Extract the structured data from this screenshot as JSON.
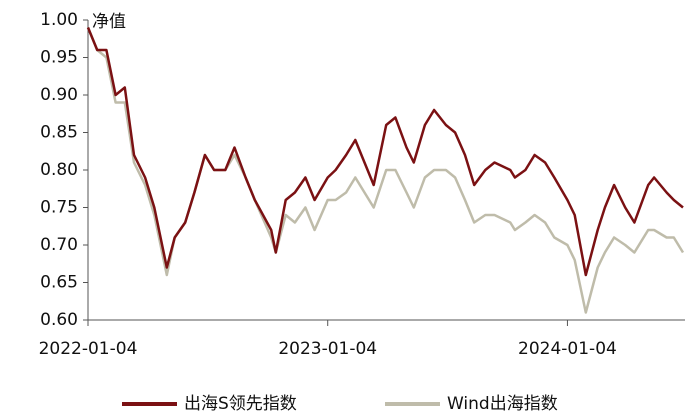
{
  "chart_data": {
    "type": "line",
    "y_label": "净值",
    "x": [
      "2022-01-04",
      "2022-01-18",
      "2022-02-01",
      "2022-02-15",
      "2022-03-01",
      "2022-03-15",
      "2022-04-01",
      "2022-04-15",
      "2022-05-04",
      "2022-05-16",
      "2022-06-01",
      "2022-06-15",
      "2022-07-01",
      "2022-07-15",
      "2022-08-01",
      "2022-08-15",
      "2022-09-01",
      "2022-09-15",
      "2022-10-10",
      "2022-10-17",
      "2022-11-01",
      "2022-11-15",
      "2022-12-01",
      "2022-12-15",
      "2023-01-04",
      "2023-01-16",
      "2023-02-01",
      "2023-02-15",
      "2023-03-01",
      "2023-03-15",
      "2023-04-03",
      "2023-04-17",
      "2023-05-04",
      "2023-05-15",
      "2023-06-01",
      "2023-06-15",
      "2023-07-03",
      "2023-07-17",
      "2023-08-01",
      "2023-08-15",
      "2023-09-01",
      "2023-09-15",
      "2023-10-09",
      "2023-10-16",
      "2023-11-01",
      "2023-11-15",
      "2023-12-01",
      "2023-12-15",
      "2024-01-04",
      "2024-01-15",
      "2024-02-01",
      "2024-02-19",
      "2024-03-01",
      "2024-03-15",
      "2024-04-01",
      "2024-04-15",
      "2024-05-06",
      "2024-05-15",
      "2024-06-03",
      "2024-06-14",
      "2024-06-28"
    ],
    "series": [
      {
        "name": "出海S领先指数",
        "color": "#7b1113",
        "values": [
          0.99,
          0.96,
          0.96,
          0.9,
          0.91,
          0.82,
          0.79,
          0.75,
          0.67,
          0.71,
          0.73,
          0.77,
          0.82,
          0.8,
          0.8,
          0.83,
          0.79,
          0.76,
          0.72,
          0.69,
          0.76,
          0.77,
          0.79,
          0.76,
          0.79,
          0.8,
          0.82,
          0.84,
          0.81,
          0.78,
          0.86,
          0.87,
          0.83,
          0.81,
          0.86,
          0.88,
          0.86,
          0.85,
          0.82,
          0.78,
          0.8,
          0.81,
          0.8,
          0.79,
          0.8,
          0.82,
          0.81,
          0.79,
          0.76,
          0.74,
          0.66,
          0.72,
          0.75,
          0.78,
          0.75,
          0.73,
          0.78,
          0.79,
          0.77,
          0.76,
          0.75
        ]
      },
      {
        "name": "Wind出海指数",
        "color": "#bfbcaa",
        "values": [
          0.99,
          0.96,
          0.95,
          0.89,
          0.89,
          0.81,
          0.78,
          0.74,
          0.66,
          0.71,
          0.73,
          0.77,
          0.82,
          0.8,
          0.8,
          0.82,
          0.79,
          0.76,
          0.71,
          0.69,
          0.74,
          0.73,
          0.75,
          0.72,
          0.76,
          0.76,
          0.77,
          0.79,
          0.77,
          0.75,
          0.8,
          0.8,
          0.77,
          0.75,
          0.79,
          0.8,
          0.8,
          0.79,
          0.76,
          0.73,
          0.74,
          0.74,
          0.73,
          0.72,
          0.73,
          0.74,
          0.73,
          0.71,
          0.7,
          0.68,
          0.61,
          0.67,
          0.69,
          0.71,
          0.7,
          0.69,
          0.72,
          0.72,
          0.71,
          0.71,
          0.69
        ]
      }
    ],
    "xlim": [
      "2022-01-04",
      "2024-07-01"
    ],
    "xticks": [
      "2022-01-04",
      "2023-01-04",
      "2024-01-04"
    ],
    "ylim": [
      0.6,
      1.0
    ],
    "yticks": [
      {
        "value": 0.6,
        "label": "0.60"
      },
      0.65,
      {
        "value": 0.7,
        "label": "0.70"
      },
      0.75,
      {
        "value": 0.8,
        "label": "0.80"
      },
      0.85,
      {
        "value": 0.9,
        "label": "0.90"
      },
      0.95,
      {
        "value": 1.0,
        "label": "1.00"
      }
    ],
    "legend": "bottom"
  }
}
